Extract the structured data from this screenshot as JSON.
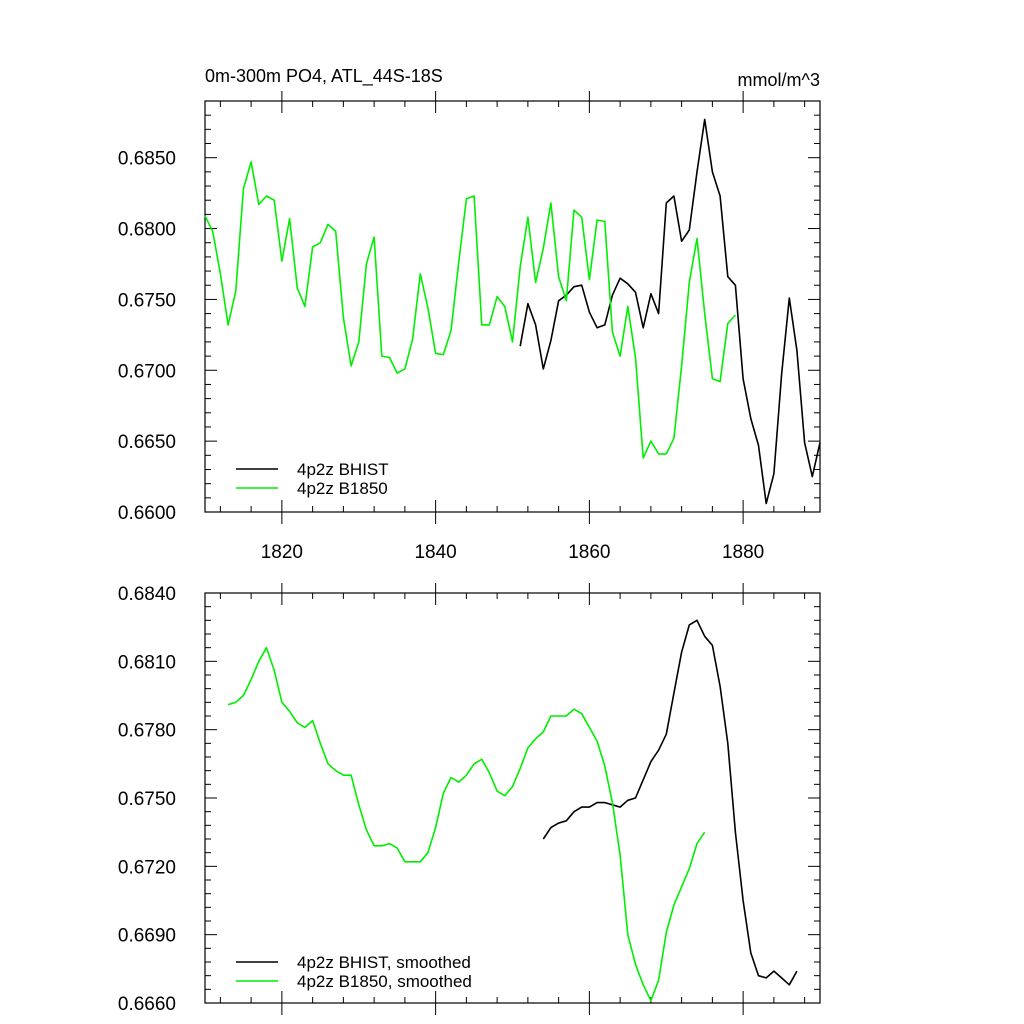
{
  "colors": {
    "hist": "#000000",
    "b1850": "#00ee00"
  },
  "chart_data": [
    {
      "type": "line",
      "title": "0m-300m PO4, ATL_44S-18S",
      "units": "mmol/m^3",
      "xlim": [
        1810,
        1890
      ],
      "ylim": [
        0.66,
        0.689
      ],
      "x_ticks": [
        1820,
        1840,
        1860,
        1880
      ],
      "x_tick_labels": [
        "1820",
        "1840",
        "1860",
        "1880"
      ],
      "y_ticks": [
        0.66,
        0.665,
        0.67,
        0.675,
        0.68,
        0.685
      ],
      "y_tick_labels": [
        "0.6600",
        "0.6650",
        "0.6700",
        "0.6750",
        "0.6800",
        "0.6850"
      ],
      "series": [
        {
          "name": "4p2z BHIST",
          "color": "#000000",
          "x_start": 1851,
          "values": [
            0.6717,
            0.6747,
            0.6732,
            0.6701,
            0.6721,
            0.6749,
            0.6753,
            0.6759,
            0.676,
            0.6741,
            0.673,
            0.6732,
            0.6753,
            0.6765,
            0.6761,
            0.6755,
            0.673,
            0.6754,
            0.674,
            0.6818,
            0.6823,
            0.6791,
            0.6799,
            0.684,
            0.6877,
            0.684,
            0.6823,
            0.6766,
            0.676,
            0.6694,
            0.6666,
            0.6647,
            0.6606,
            0.6627,
            0.6697,
            0.6751,
            0.6714,
            0.6649,
            0.6625,
            0.6649
          ]
        },
        {
          "name": "4p2z B1850",
          "color": "#00ee00",
          "x_start": 1810,
          "values": [
            0.6809,
            0.6798,
            0.6768,
            0.6732,
            0.6756,
            0.6828,
            0.6847,
            0.6817,
            0.6823,
            0.682,
            0.6777,
            0.6807,
            0.6758,
            0.6745,
            0.6787,
            0.679,
            0.6803,
            0.6798,
            0.6737,
            0.6703,
            0.672,
            0.6775,
            0.6794,
            0.671,
            0.6709,
            0.6698,
            0.6701,
            0.6722,
            0.6768,
            0.6744,
            0.6712,
            0.6711,
            0.6728,
            0.6776,
            0.6821,
            0.6823,
            0.6732,
            0.6732,
            0.6752,
            0.6745,
            0.672,
            0.6773,
            0.6808,
            0.6762,
            0.6786,
            0.6818,
            0.6766,
            0.6749,
            0.6813,
            0.6808,
            0.6764,
            0.6806,
            0.6805,
            0.6727,
            0.671,
            0.6745,
            0.6709,
            0.6638,
            0.665,
            0.6641,
            0.6641,
            0.6652,
            0.6703,
            0.6762,
            0.6793,
            0.674,
            0.6694,
            0.6692,
            0.6733,
            0.6739
          ]
        }
      ]
    },
    {
      "type": "line",
      "xlim": [
        1810,
        1890
      ],
      "ylim": [
        0.666,
        0.684
      ],
      "x_ticks": [
        1820,
        1840,
        1860,
        1880
      ],
      "y_ticks": [
        0.666,
        0.669,
        0.672,
        0.675,
        0.678,
        0.681,
        0.684
      ],
      "y_tick_labels": [
        "0.6660",
        "0.6690",
        "0.6720",
        "0.6750",
        "0.6780",
        "0.6810",
        "0.6840"
      ],
      "series": [
        {
          "name": "4p2z BHIST, smoothed",
          "color": "#000000",
          "x_start": 1854,
          "values": [
            0.6732,
            0.6737,
            0.6739,
            0.674,
            0.6744,
            0.6746,
            0.6746,
            0.6748,
            0.6748,
            0.6747,
            0.6746,
            0.6749,
            0.675,
            0.6758,
            0.6766,
            0.6771,
            0.6778,
            0.6796,
            0.6814,
            0.6826,
            0.6828,
            0.6821,
            0.6817,
            0.6799,
            0.6774,
            0.6735,
            0.6705,
            0.6682,
            0.6672,
            0.6671,
            0.6674,
            0.6671,
            0.6668,
            0.6674
          ]
        },
        {
          "name": "4p2z B1850, smoothed",
          "color": "#00ee00",
          "x_start": 1813,
          "values": [
            0.6791,
            0.6792,
            0.6795,
            0.6802,
            0.681,
            0.6816,
            0.6806,
            0.6792,
            0.6788,
            0.6783,
            0.6781,
            0.6784,
            0.6774,
            0.6765,
            0.6762,
            0.676,
            0.676,
            0.6747,
            0.6736,
            0.6729,
            0.6729,
            0.673,
            0.6728,
            0.6722,
            0.6722,
            0.6722,
            0.6726,
            0.6737,
            0.6752,
            0.6759,
            0.6757,
            0.676,
            0.6765,
            0.6767,
            0.6761,
            0.6753,
            0.6751,
            0.6755,
            0.6763,
            0.6772,
            0.6776,
            0.6779,
            0.6786,
            0.6786,
            0.6786,
            0.6789,
            0.6787,
            0.6781,
            0.6775,
            0.6764,
            0.6748,
            0.6725,
            0.669,
            0.6677,
            0.6668,
            0.6661,
            0.667,
            0.6691,
            0.6703,
            0.6711,
            0.6719,
            0.673,
            0.6735
          ]
        }
      ]
    }
  ]
}
